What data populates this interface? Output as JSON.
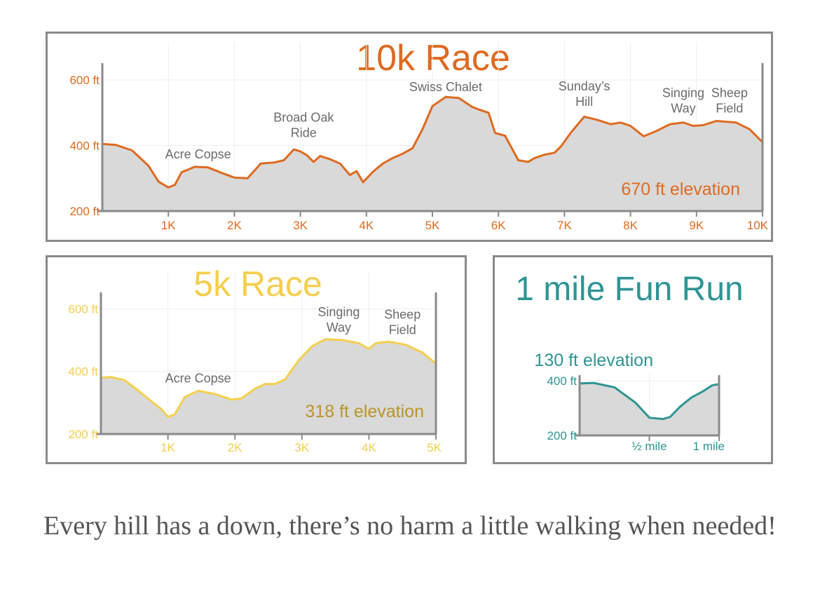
{
  "colors": {
    "orange": "#de6a1f",
    "yellow": "#f4cf4e",
    "elevation_label_yellow": "#b9952a",
    "teal": "#2f9494",
    "fill": "#d9d9d9",
    "axis": "#8a8a8a",
    "landmark": "#6b6b6b"
  },
  "chart_data": [
    {
      "type": "area",
      "title": "10k Race",
      "annotation": "670 ft elevation",
      "yticks": [
        "600 ft",
        "400 ft",
        "200 ft"
      ],
      "ytick_values": [
        600,
        400,
        200
      ],
      "xticks": [
        "1K",
        "2K",
        "3K",
        "4K",
        "5K",
        "6K",
        "7K",
        "8K",
        "9K",
        "10K"
      ],
      "xtick_values": [
        1,
        2,
        3,
        4,
        5,
        6,
        7,
        8,
        9,
        10
      ],
      "xlim": [
        0,
        10
      ],
      "ylim": [
        200,
        630
      ],
      "landmarks": [
        {
          "label": [
            "Acre Copse"
          ],
          "x": 1.45,
          "y": 335
        },
        {
          "label": [
            "Broad Oak",
            "Ride"
          ],
          "x": 3.05,
          "y": 400
        },
        {
          "label": [
            "Swiss Chalet"
          ],
          "x": 5.2,
          "y": 540
        },
        {
          "label": [
            "Sunday’s",
            "Hill"
          ],
          "x": 7.3,
          "y": 495
        },
        {
          "label": [
            "Singing",
            "Way"
          ],
          "x": 8.8,
          "y": 475
        },
        {
          "label": [
            "Sheep",
            "Field"
          ],
          "x": 9.5,
          "y": 475
        }
      ],
      "x": [
        0,
        0.2,
        0.45,
        0.7,
        0.85,
        1.0,
        1.1,
        1.2,
        1.4,
        1.6,
        1.8,
        2.0,
        2.2,
        2.4,
        2.6,
        2.75,
        2.9,
        3.0,
        3.1,
        3.2,
        3.3,
        3.45,
        3.6,
        3.75,
        3.85,
        3.95,
        4.1,
        4.25,
        4.4,
        4.55,
        4.7,
        4.85,
        5.0,
        5.2,
        5.4,
        5.6,
        5.7,
        5.85,
        5.95,
        6.1,
        6.3,
        6.45,
        6.55,
        6.7,
        6.85,
        6.95,
        7.1,
        7.3,
        7.5,
        7.7,
        7.85,
        8.0,
        8.2,
        8.4,
        8.6,
        8.8,
        8.95,
        9.1,
        9.3,
        9.6,
        9.8,
        10.0
      ],
      "values": [
        405,
        402,
        385,
        338,
        290,
        272,
        280,
        318,
        335,
        333,
        317,
        302,
        300,
        345,
        348,
        355,
        388,
        382,
        370,
        350,
        368,
        358,
        345,
        310,
        322,
        288,
        320,
        345,
        362,
        375,
        392,
        450,
        520,
        548,
        545,
        518,
        510,
        500,
        438,
        430,
        355,
        350,
        362,
        372,
        378,
        398,
        440,
        488,
        478,
        465,
        470,
        460,
        428,
        445,
        465,
        470,
        460,
        462,
        475,
        470,
        450,
        410
      ]
    },
    {
      "type": "area",
      "title": "5k Race",
      "annotation": "318 ft elevation",
      "yticks": [
        "600 ft",
        "400 ft",
        "200 ft"
      ],
      "ytick_values": [
        600,
        400,
        200
      ],
      "xticks": [
        "1K",
        "2K",
        "3K",
        "4K",
        "5K"
      ],
      "xtick_values": [
        1,
        2,
        3,
        4,
        5
      ],
      "xlim": [
        0,
        5
      ],
      "ylim": [
        200,
        630
      ],
      "landmarks": [
        {
          "label": [
            "Acre Copse"
          ],
          "x": 1.45,
          "y": 338
        },
        {
          "label": [
            "Singing",
            "Way"
          ],
          "x": 3.55,
          "y": 500
        },
        {
          "label": [
            "Sheep",
            "Field"
          ],
          "x": 4.5,
          "y": 492
        }
      ],
      "x": [
        0,
        0.15,
        0.35,
        0.55,
        0.75,
        0.9,
        1.0,
        1.1,
        1.25,
        1.45,
        1.7,
        1.95,
        2.1,
        2.3,
        2.45,
        2.6,
        2.75,
        2.95,
        3.15,
        3.35,
        3.6,
        3.85,
        4.0,
        4.1,
        4.3,
        4.55,
        4.8,
        5.0
      ],
      "values": [
        380,
        382,
        372,
        340,
        305,
        280,
        255,
        262,
        318,
        338,
        328,
        310,
        314,
        345,
        360,
        360,
        375,
        435,
        480,
        503,
        500,
        490,
        472,
        490,
        495,
        485,
        460,
        425
      ]
    },
    {
      "type": "area",
      "title": "1 mile Fun Run",
      "annotation": "130 ft elevation",
      "yticks": [
        "400 ft",
        "200 ft"
      ],
      "ytick_values": [
        400,
        200
      ],
      "xticks": [
        "½ mile",
        "1 mile"
      ],
      "xtick_values": [
        0.5,
        1
      ],
      "xlim": [
        0,
        1
      ],
      "ylim": [
        200,
        400
      ],
      "landmarks": [],
      "x": [
        0,
        0.1,
        0.25,
        0.4,
        0.5,
        0.6,
        0.65,
        0.72,
        0.8,
        0.88,
        0.95,
        1.0
      ],
      "values": [
        390,
        392,
        376,
        320,
        265,
        260,
        268,
        305,
        338,
        360,
        383,
        388
      ]
    }
  ],
  "caption": "Every hill has a down, there’s no harm a little walking when needed!"
}
